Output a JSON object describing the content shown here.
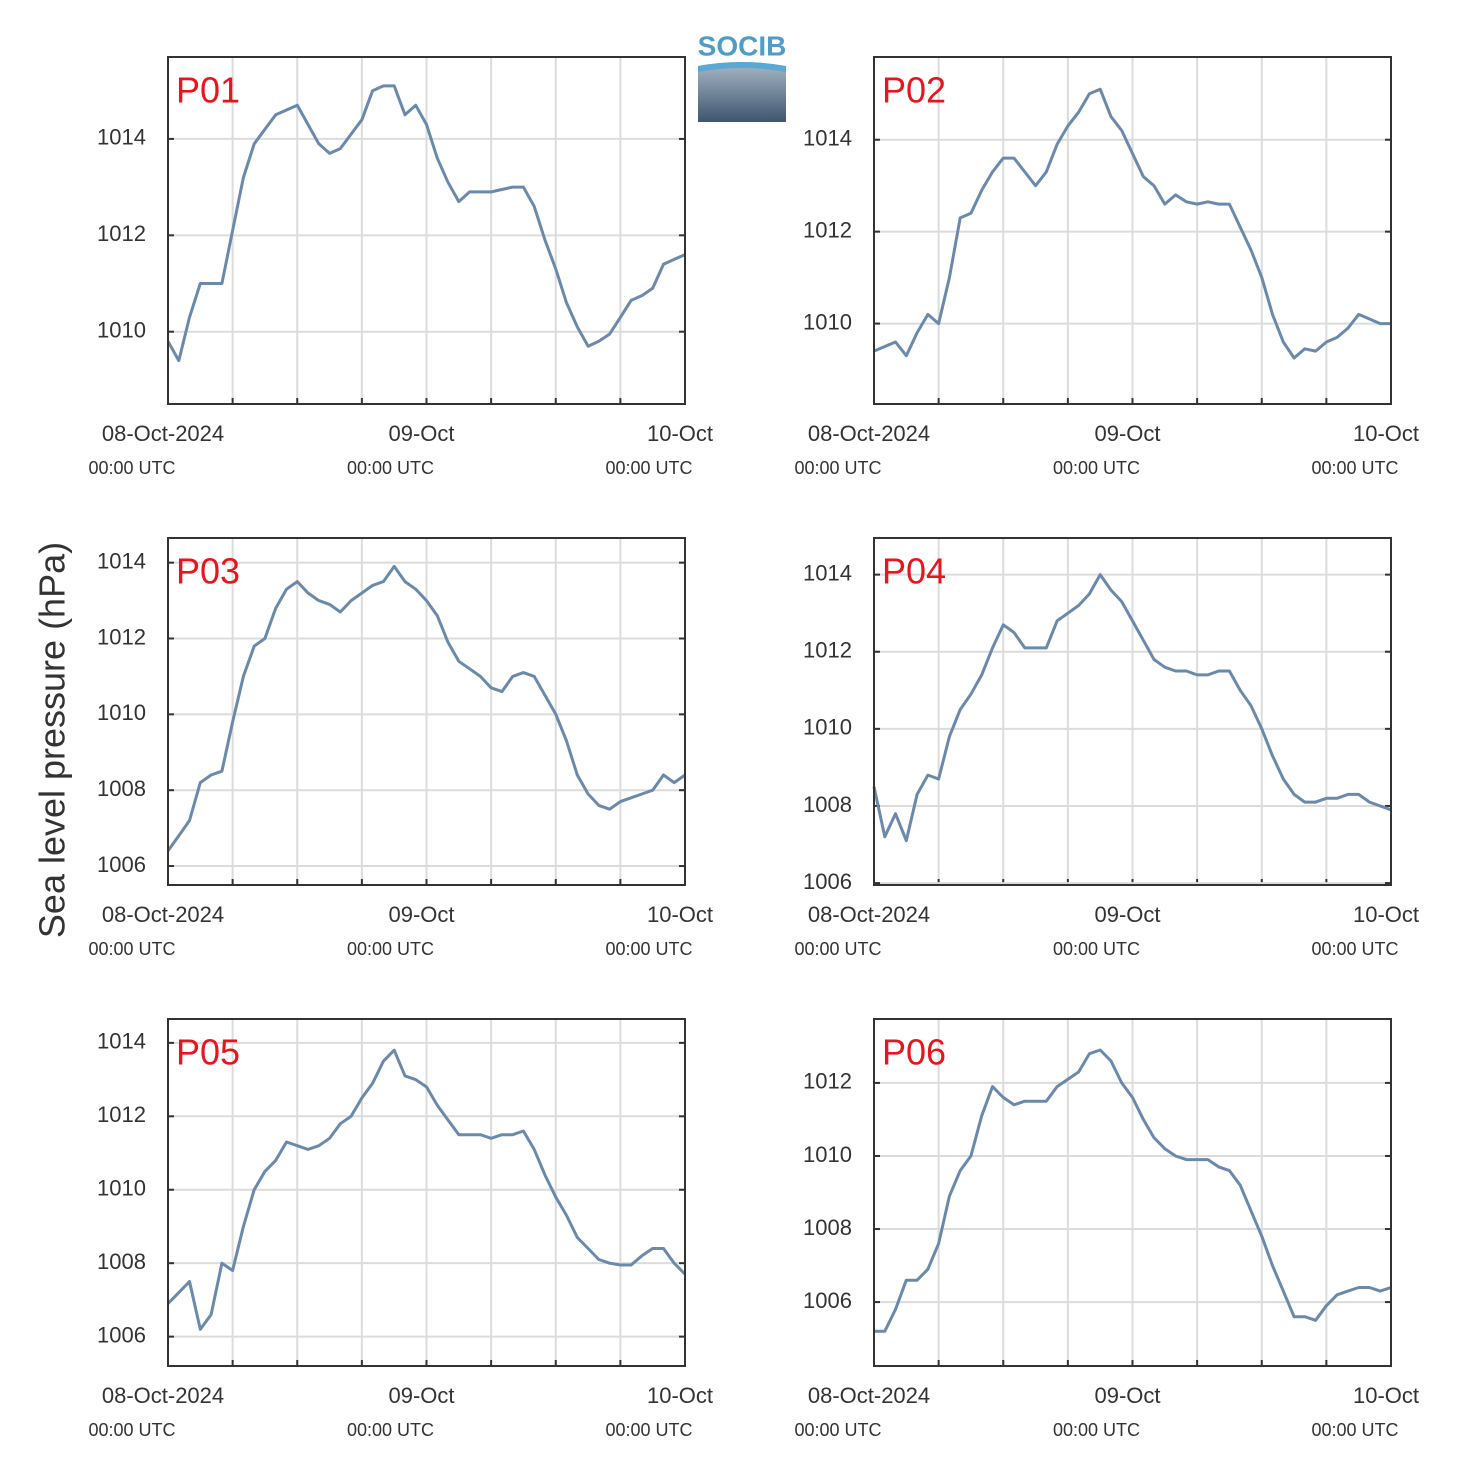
{
  "logo": "SOCIB",
  "ylabel": "Sea level pressure (hPa)",
  "chart_data": [
    {
      "type": "line",
      "title": "P01",
      "color": "#6a89ab",
      "x": [
        "2024-10-08T00:00",
        "2024-10-08T01:00",
        "2024-10-08T02:00",
        "2024-10-08T03:00",
        "2024-10-08T04:00",
        "2024-10-08T05:00",
        "2024-10-08T06:00",
        "2024-10-08T07:00",
        "2024-10-08T08:00",
        "2024-10-08T09:00",
        "2024-10-08T10:00",
        "2024-10-08T11:00",
        "2024-10-08T12:00",
        "2024-10-08T13:00",
        "2024-10-08T14:00",
        "2024-10-08T15:00",
        "2024-10-08T16:00",
        "2024-10-08T17:00",
        "2024-10-08T18:00",
        "2024-10-08T19:00",
        "2024-10-08T20:00",
        "2024-10-08T21:00",
        "2024-10-08T22:00",
        "2024-10-08T23:00",
        "2024-10-09T00:00",
        "2024-10-09T01:00",
        "2024-10-09T02:00",
        "2024-10-09T03:00",
        "2024-10-09T04:00",
        "2024-10-09T05:00",
        "2024-10-09T06:00",
        "2024-10-09T07:00",
        "2024-10-09T08:00",
        "2024-10-09T09:00",
        "2024-10-09T10:00",
        "2024-10-09T11:00",
        "2024-10-09T12:00",
        "2024-10-09T13:00",
        "2024-10-09T14:00",
        "2024-10-09T15:00",
        "2024-10-09T16:00",
        "2024-10-09T17:00",
        "2024-10-09T18:00",
        "2024-10-09T19:00",
        "2024-10-09T20:00",
        "2024-10-09T21:00",
        "2024-10-09T22:00",
        "2024-10-09T23:00",
        "2024-10-10T00:00"
      ],
      "values": [
        1009.8,
        1009.4,
        1010.3,
        1011.0,
        1011.0,
        1011.0,
        1012.1,
        1013.2,
        1013.9,
        1014.2,
        1014.5,
        1014.6,
        1014.7,
        1014.3,
        1013.9,
        1013.7,
        1013.8,
        1014.1,
        1014.4,
        1015.0,
        1015.1,
        1015.1,
        1014.5,
        1014.7,
        1014.3,
        1013.6,
        1013.1,
        1012.7,
        1012.9,
        1012.9,
        1012.9,
        1012.95,
        1013.0,
        1013.0,
        1012.6,
        1011.9,
        1011.3,
        1010.6,
        1010.1,
        1009.7,
        1009.8,
        1009.95,
        1010.3,
        1010.65,
        1010.75,
        1010.9,
        1011.4,
        1011.5,
        1011.6
      ],
      "xlim": [
        "2024-10-08T00:00",
        "2024-10-10T00:00"
      ],
      "xticks": [
        {
          "value": "2024-10-08T00:00",
          "label": "08-Oct-2024",
          "sublabel": "00:00 UTC"
        },
        {
          "value": "2024-10-09T00:00",
          "label": "09-Oct",
          "sublabel": "00:00 UTC"
        },
        {
          "value": "2024-10-10T00:00",
          "label": "10-Oct",
          "sublabel": "00:00 UTC"
        }
      ],
      "xgrid": [
        "2024-10-08T00:00",
        "2024-10-08T06:00",
        "2024-10-08T12:00",
        "2024-10-08T18:00",
        "2024-10-09T00:00",
        "2024-10-09T06:00",
        "2024-10-09T12:00",
        "2024-10-09T18:00",
        "2024-10-10T00:00"
      ],
      "ylim": [
        1008.5,
        1015.7
      ],
      "yticks": [
        1010,
        1012,
        1014
      ],
      "grid": true
    },
    {
      "type": "line",
      "title": "P02",
      "color": "#6a89ab",
      "x": [
        "2024-10-08T00:00",
        "2024-10-08T01:00",
        "2024-10-08T02:00",
        "2024-10-08T03:00",
        "2024-10-08T04:00",
        "2024-10-08T05:00",
        "2024-10-08T06:00",
        "2024-10-08T07:00",
        "2024-10-08T08:00",
        "2024-10-08T09:00",
        "2024-10-08T10:00",
        "2024-10-08T11:00",
        "2024-10-08T12:00",
        "2024-10-08T13:00",
        "2024-10-08T14:00",
        "2024-10-08T15:00",
        "2024-10-08T16:00",
        "2024-10-08T17:00",
        "2024-10-08T18:00",
        "2024-10-08T19:00",
        "2024-10-08T20:00",
        "2024-10-08T21:00",
        "2024-10-08T22:00",
        "2024-10-08T23:00",
        "2024-10-09T00:00",
        "2024-10-09T01:00",
        "2024-10-09T02:00",
        "2024-10-09T03:00",
        "2024-10-09T04:00",
        "2024-10-09T05:00",
        "2024-10-09T06:00",
        "2024-10-09T07:00",
        "2024-10-09T08:00",
        "2024-10-09T09:00",
        "2024-10-09T10:00",
        "2024-10-09T11:00",
        "2024-10-09T12:00",
        "2024-10-09T13:00",
        "2024-10-09T14:00",
        "2024-10-09T15:00",
        "2024-10-09T16:00",
        "2024-10-09T17:00",
        "2024-10-09T18:00",
        "2024-10-09T19:00",
        "2024-10-09T20:00",
        "2024-10-09T21:00",
        "2024-10-09T22:00",
        "2024-10-09T23:00",
        "2024-10-10T00:00"
      ],
      "values": [
        1009.4,
        1009.5,
        1009.6,
        1009.3,
        1009.8,
        1010.2,
        1010.0,
        1011.0,
        1012.3,
        1012.4,
        1012.9,
        1013.3,
        1013.6,
        1013.6,
        1013.3,
        1013.0,
        1013.3,
        1013.9,
        1014.3,
        1014.6,
        1015.0,
        1015.1,
        1014.5,
        1014.2,
        1013.7,
        1013.2,
        1013.0,
        1012.6,
        1012.8,
        1012.65,
        1012.6,
        1012.65,
        1012.6,
        1012.6,
        1012.1,
        1011.6,
        1011.0,
        1010.2,
        1009.6,
        1009.25,
        1009.45,
        1009.4,
        1009.6,
        1009.7,
        1009.9,
        1010.2,
        1010.1,
        1010.0,
        1010.0
      ],
      "xlim": [
        "2024-10-08T00:00",
        "2024-10-10T00:00"
      ],
      "xticks": [
        {
          "value": "2024-10-08T00:00",
          "label": "08-Oct-2024",
          "sublabel": "00:00 UTC"
        },
        {
          "value": "2024-10-09T00:00",
          "label": "09-Oct",
          "sublabel": "00:00 UTC"
        },
        {
          "value": "2024-10-10T00:00",
          "label": "10-Oct",
          "sublabel": "00:00 UTC"
        }
      ],
      "xgrid": [
        "2024-10-08T00:00",
        "2024-10-08T06:00",
        "2024-10-08T12:00",
        "2024-10-08T18:00",
        "2024-10-09T00:00",
        "2024-10-09T06:00",
        "2024-10-09T12:00",
        "2024-10-09T18:00",
        "2024-10-10T00:00"
      ],
      "ylim": [
        1008.25,
        1015.8
      ],
      "yticks": [
        1010,
        1012,
        1014
      ],
      "grid": true
    },
    {
      "type": "line",
      "title": "P03",
      "color": "#6a89ab",
      "x": [
        "2024-10-08T00:00",
        "2024-10-08T01:00",
        "2024-10-08T02:00",
        "2024-10-08T03:00",
        "2024-10-08T04:00",
        "2024-10-08T05:00",
        "2024-10-08T06:00",
        "2024-10-08T07:00",
        "2024-10-08T08:00",
        "2024-10-08T09:00",
        "2024-10-08T10:00",
        "2024-10-08T11:00",
        "2024-10-08T12:00",
        "2024-10-08T13:00",
        "2024-10-08T14:00",
        "2024-10-08T15:00",
        "2024-10-08T16:00",
        "2024-10-08T17:00",
        "2024-10-08T18:00",
        "2024-10-08T19:00",
        "2024-10-08T20:00",
        "2024-10-08T21:00",
        "2024-10-08T22:00",
        "2024-10-08T23:00",
        "2024-10-09T00:00",
        "2024-10-09T01:00",
        "2024-10-09T02:00",
        "2024-10-09T03:00",
        "2024-10-09T04:00",
        "2024-10-09T05:00",
        "2024-10-09T06:00",
        "2024-10-09T07:00",
        "2024-10-09T08:00",
        "2024-10-09T09:00",
        "2024-10-09T10:00",
        "2024-10-09T11:00",
        "2024-10-09T12:00",
        "2024-10-09T13:00",
        "2024-10-09T14:00",
        "2024-10-09T15:00",
        "2024-10-09T16:00",
        "2024-10-09T17:00",
        "2024-10-09T18:00",
        "2024-10-09T19:00",
        "2024-10-09T20:00",
        "2024-10-09T21:00",
        "2024-10-09T22:00",
        "2024-10-09T23:00",
        "2024-10-10T00:00"
      ],
      "values": [
        1006.4,
        1006.8,
        1007.2,
        1008.2,
        1008.4,
        1008.5,
        1009.8,
        1011.0,
        1011.8,
        1012.0,
        1012.8,
        1013.3,
        1013.5,
        1013.2,
        1013.0,
        1012.9,
        1012.7,
        1013.0,
        1013.2,
        1013.4,
        1013.5,
        1013.9,
        1013.5,
        1013.3,
        1013.0,
        1012.6,
        1011.9,
        1011.4,
        1011.2,
        1011.0,
        1010.7,
        1010.6,
        1011.0,
        1011.1,
        1011.0,
        1010.5,
        1010.0,
        1009.3,
        1008.4,
        1007.9,
        1007.6,
        1007.5,
        1007.7,
        1007.8,
        1007.9,
        1008.0,
        1008.4,
        1008.2,
        1008.4
      ],
      "xlim": [
        "2024-10-08T00:00",
        "2024-10-10T00:00"
      ],
      "xticks": [
        {
          "value": "2024-10-08T00:00",
          "label": "08-Oct-2024",
          "sublabel": "00:00 UTC"
        },
        {
          "value": "2024-10-09T00:00",
          "label": "09-Oct",
          "sublabel": "00:00 UTC"
        },
        {
          "value": "2024-10-10T00:00",
          "label": "10-Oct",
          "sublabel": "00:00 UTC"
        }
      ],
      "xgrid": [
        "2024-10-08T00:00",
        "2024-10-08T06:00",
        "2024-10-08T12:00",
        "2024-10-08T18:00",
        "2024-10-09T00:00",
        "2024-10-09T06:00",
        "2024-10-09T12:00",
        "2024-10-09T18:00",
        "2024-10-10T00:00"
      ],
      "ylim": [
        1005.5,
        1014.65
      ],
      "yticks": [
        1006,
        1008,
        1010,
        1012,
        1014
      ],
      "grid": true
    },
    {
      "type": "line",
      "title": "P04",
      "color": "#6a89ab",
      "x": [
        "2024-10-08T00:00",
        "2024-10-08T01:00",
        "2024-10-08T02:00",
        "2024-10-08T03:00",
        "2024-10-08T04:00",
        "2024-10-08T05:00",
        "2024-10-08T06:00",
        "2024-10-08T07:00",
        "2024-10-08T08:00",
        "2024-10-08T09:00",
        "2024-10-08T10:00",
        "2024-10-08T11:00",
        "2024-10-08T12:00",
        "2024-10-08T13:00",
        "2024-10-08T14:00",
        "2024-10-08T15:00",
        "2024-10-08T16:00",
        "2024-10-08T17:00",
        "2024-10-08T18:00",
        "2024-10-08T19:00",
        "2024-10-08T20:00",
        "2024-10-08T21:00",
        "2024-10-08T22:00",
        "2024-10-08T23:00",
        "2024-10-09T00:00",
        "2024-10-09T01:00",
        "2024-10-09T02:00",
        "2024-10-09T03:00",
        "2024-10-09T04:00",
        "2024-10-09T05:00",
        "2024-10-09T06:00",
        "2024-10-09T07:00",
        "2024-10-09T08:00",
        "2024-10-09T09:00",
        "2024-10-09T10:00",
        "2024-10-09T11:00",
        "2024-10-09T12:00",
        "2024-10-09T13:00",
        "2024-10-09T14:00",
        "2024-10-09T15:00",
        "2024-10-09T16:00",
        "2024-10-09T17:00",
        "2024-10-09T18:00",
        "2024-10-09T19:00",
        "2024-10-09T20:00",
        "2024-10-09T21:00",
        "2024-10-09T22:00",
        "2024-10-09T23:00",
        "2024-10-10T00:00"
      ],
      "values": [
        1008.5,
        1007.2,
        1007.8,
        1007.1,
        1008.3,
        1008.8,
        1008.7,
        1009.8,
        1010.5,
        1010.9,
        1011.4,
        1012.1,
        1012.7,
        1012.5,
        1012.1,
        1012.1,
        1012.1,
        1012.8,
        1013.0,
        1013.2,
        1013.5,
        1014.0,
        1013.6,
        1013.3,
        1012.8,
        1012.3,
        1011.8,
        1011.6,
        1011.5,
        1011.5,
        1011.4,
        1011.4,
        1011.5,
        1011.5,
        1011.0,
        1010.6,
        1010.0,
        1009.3,
        1008.7,
        1008.3,
        1008.1,
        1008.1,
        1008.2,
        1008.2,
        1008.3,
        1008.3,
        1008.1,
        1008.0,
        1007.9
      ],
      "xlim": [
        "2024-10-08T00:00",
        "2024-10-10T00:00"
      ],
      "xticks": [
        {
          "value": "2024-10-08T00:00",
          "label": "08-Oct-2024",
          "sublabel": "00:00 UTC"
        },
        {
          "value": "2024-10-09T00:00",
          "label": "09-Oct",
          "sublabel": "00:00 UTC"
        },
        {
          "value": "2024-10-10T00:00",
          "label": "10-Oct",
          "sublabel": "00:00 UTC"
        }
      ],
      "xgrid": [
        "2024-10-08T00:00",
        "2024-10-08T06:00",
        "2024-10-08T12:00",
        "2024-10-08T18:00",
        "2024-10-09T00:00",
        "2024-10-09T06:00",
        "2024-10-09T12:00",
        "2024-10-09T18:00",
        "2024-10-10T00:00"
      ],
      "ylim": [
        1005.95,
        1014.95
      ],
      "yticks": [
        1006,
        1008,
        1010,
        1012,
        1014
      ],
      "grid": true
    },
    {
      "type": "line",
      "title": "P05",
      "color": "#6a89ab",
      "x": [
        "2024-10-08T00:00",
        "2024-10-08T01:00",
        "2024-10-08T02:00",
        "2024-10-08T03:00",
        "2024-10-08T04:00",
        "2024-10-08T05:00",
        "2024-10-08T06:00",
        "2024-10-08T07:00",
        "2024-10-08T08:00",
        "2024-10-08T09:00",
        "2024-10-08T10:00",
        "2024-10-08T11:00",
        "2024-10-08T12:00",
        "2024-10-08T13:00",
        "2024-10-08T14:00",
        "2024-10-08T15:00",
        "2024-10-08T16:00",
        "2024-10-08T17:00",
        "2024-10-08T18:00",
        "2024-10-08T19:00",
        "2024-10-08T20:00",
        "2024-10-08T21:00",
        "2024-10-08T22:00",
        "2024-10-08T23:00",
        "2024-10-09T00:00",
        "2024-10-09T01:00",
        "2024-10-09T02:00",
        "2024-10-09T03:00",
        "2024-10-09T04:00",
        "2024-10-09T05:00",
        "2024-10-09T06:00",
        "2024-10-09T07:00",
        "2024-10-09T08:00",
        "2024-10-09T09:00",
        "2024-10-09T10:00",
        "2024-10-09T11:00",
        "2024-10-09T12:00",
        "2024-10-09T13:00",
        "2024-10-09T14:00",
        "2024-10-09T15:00",
        "2024-10-09T16:00",
        "2024-10-09T17:00",
        "2024-10-09T18:00",
        "2024-10-09T19:00",
        "2024-10-09T20:00",
        "2024-10-09T21:00",
        "2024-10-09T22:00",
        "2024-10-09T23:00",
        "2024-10-10T00:00"
      ],
      "values": [
        1006.9,
        1007.2,
        1007.5,
        1006.2,
        1006.6,
        1008.0,
        1007.8,
        1009.0,
        1010.0,
        1010.5,
        1010.8,
        1011.3,
        1011.2,
        1011.1,
        1011.2,
        1011.4,
        1011.8,
        1012.0,
        1012.5,
        1012.9,
        1013.5,
        1013.8,
        1013.1,
        1013.0,
        1012.8,
        1012.3,
        1011.9,
        1011.5,
        1011.5,
        1011.5,
        1011.4,
        1011.5,
        1011.5,
        1011.6,
        1011.1,
        1010.4,
        1009.8,
        1009.3,
        1008.7,
        1008.4,
        1008.1,
        1008.0,
        1007.95,
        1007.95,
        1008.2,
        1008.4,
        1008.4,
        1008.0,
        1007.7
      ],
      "xlim": [
        "2024-10-08T00:00",
        "2024-10-10T00:00"
      ],
      "xticks": [
        {
          "value": "2024-10-08T00:00",
          "label": "08-Oct-2024",
          "sublabel": "00:00 UTC"
        },
        {
          "value": "2024-10-09T00:00",
          "label": "09-Oct",
          "sublabel": "00:00 UTC"
        },
        {
          "value": "2024-10-10T00:00",
          "label": "10-Oct",
          "sublabel": "00:00 UTC"
        }
      ],
      "xgrid": [
        "2024-10-08T00:00",
        "2024-10-08T06:00",
        "2024-10-08T12:00",
        "2024-10-08T18:00",
        "2024-10-09T00:00",
        "2024-10-09T06:00",
        "2024-10-09T12:00",
        "2024-10-09T18:00",
        "2024-10-10T00:00"
      ],
      "ylim": [
        1005.2,
        1014.65
      ],
      "yticks": [
        1006,
        1008,
        1010,
        1012,
        1014
      ],
      "grid": true
    },
    {
      "type": "line",
      "title": "P06",
      "color": "#6a89ab",
      "x": [
        "2024-10-08T00:00",
        "2024-10-08T01:00",
        "2024-10-08T02:00",
        "2024-10-08T03:00",
        "2024-10-08T04:00",
        "2024-10-08T05:00",
        "2024-10-08T06:00",
        "2024-10-08T07:00",
        "2024-10-08T08:00",
        "2024-10-08T09:00",
        "2024-10-08T10:00",
        "2024-10-08T11:00",
        "2024-10-08T12:00",
        "2024-10-08T13:00",
        "2024-10-08T14:00",
        "2024-10-08T15:00",
        "2024-10-08T16:00",
        "2024-10-08T17:00",
        "2024-10-08T18:00",
        "2024-10-08T19:00",
        "2024-10-08T20:00",
        "2024-10-08T21:00",
        "2024-10-08T22:00",
        "2024-10-08T23:00",
        "2024-10-09T00:00",
        "2024-10-09T01:00",
        "2024-10-09T02:00",
        "2024-10-09T03:00",
        "2024-10-09T04:00",
        "2024-10-09T05:00",
        "2024-10-09T06:00",
        "2024-10-09T07:00",
        "2024-10-09T08:00",
        "2024-10-09T09:00",
        "2024-10-09T10:00",
        "2024-10-09T11:00",
        "2024-10-09T12:00",
        "2024-10-09T13:00",
        "2024-10-09T14:00",
        "2024-10-09T15:00",
        "2024-10-09T16:00",
        "2024-10-09T17:00",
        "2024-10-09T18:00",
        "2024-10-09T19:00",
        "2024-10-09T20:00",
        "2024-10-09T21:00",
        "2024-10-09T22:00",
        "2024-10-09T23:00",
        "2024-10-10T00:00"
      ],
      "values": [
        1005.2,
        1005.2,
        1005.8,
        1006.6,
        1006.6,
        1006.9,
        1007.6,
        1008.9,
        1009.6,
        1010.0,
        1011.1,
        1011.9,
        1011.6,
        1011.4,
        1011.5,
        1011.5,
        1011.5,
        1011.9,
        1012.1,
        1012.3,
        1012.8,
        1012.9,
        1012.6,
        1012.0,
        1011.6,
        1011.0,
        1010.5,
        1010.2,
        1010.0,
        1009.9,
        1009.9,
        1009.9,
        1009.7,
        1009.6,
        1009.2,
        1008.5,
        1007.8,
        1007.0,
        1006.3,
        1005.6,
        1005.6,
        1005.5,
        1005.9,
        1006.2,
        1006.3,
        1006.4,
        1006.4,
        1006.3,
        1006.4
      ],
      "xlim": [
        "2024-10-08T00:00",
        "2024-10-10T00:00"
      ],
      "xticks": [
        {
          "value": "2024-10-08T00:00",
          "label": "08-Oct-2024",
          "sublabel": "00:00 UTC"
        },
        {
          "value": "2024-10-09T00:00",
          "label": "09-Oct",
          "sublabel": "00:00 UTC"
        },
        {
          "value": "2024-10-10T00:00",
          "label": "10-Oct",
          "sublabel": "00:00 UTC"
        }
      ],
      "xgrid": [
        "2024-10-08T00:00",
        "2024-10-08T06:00",
        "2024-10-08T12:00",
        "2024-10-08T18:00",
        "2024-10-09T00:00",
        "2024-10-09T06:00",
        "2024-10-09T12:00",
        "2024-10-09T18:00",
        "2024-10-10T00:00"
      ],
      "ylim": [
        1004.25,
        1013.75
      ],
      "yticks": [
        1006,
        1008,
        1010,
        1012
      ],
      "grid": true
    }
  ]
}
